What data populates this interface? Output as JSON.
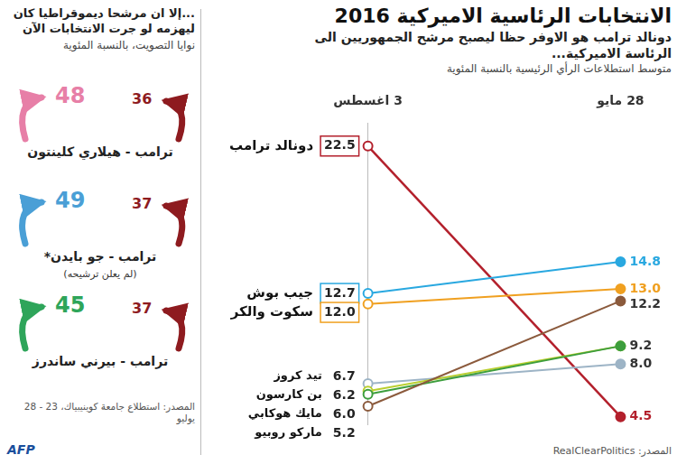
{
  "header": {
    "title": "الانتخابات الرئاسية الاميركية 2016",
    "credit": "AFP"
  },
  "chart_data": {
    "type": "line",
    "title": "دونالد ترامب هو الاوفر حظا ليصبح مرشح الجمهوريين الى الرئاسة الاميركية...",
    "subtitle": "متوسط استطلاعات الرأي الرئيسية بالنسبة المئوية",
    "source": "المصدر: RealClearPolitics",
    "categories": [
      "3 اغسطس",
      "28 مايو"
    ],
    "series": [
      {
        "name": "دونالد ترامب",
        "color": "#b3202c",
        "values": [
          22.5,
          4.5
        ],
        "value_labels": [
          "22.5",
          "4.5"
        ]
      },
      {
        "name": "جيب بوش",
        "color": "#29a8e0",
        "values": [
          12.7,
          14.8
        ],
        "value_labels": [
          "12.7",
          "14.8"
        ]
      },
      {
        "name": "سكوت والكر",
        "color": "#f0a020",
        "values": [
          12.0,
          13.0
        ],
        "value_labels": [
          "12.0",
          "13.0"
        ]
      },
      {
        "name": "تيد كروز",
        "color": "#9db4c6",
        "values": [
          6.7,
          8.0
        ],
        "value_labels": [
          "6.7",
          "8.0"
        ]
      },
      {
        "name": "بن كارسون",
        "color": "#b9cf2e",
        "values": [
          6.2,
          9.2
        ],
        "value_labels": [
          "6.2",
          "9.2"
        ]
      },
      {
        "name": "مايك هوكابي",
        "color": "#3d9e3d",
        "values": [
          6.0,
          9.2
        ],
        "value_labels": [
          "6.0",
          "9.2"
        ]
      },
      {
        "name": "ماركو روبيو",
        "color": "#8b5a3c",
        "values": [
          5.2,
          12.2
        ],
        "value_labels": [
          "5.2",
          "12.2"
        ]
      }
    ],
    "ylim": [
      4,
      24
    ],
    "tick_labels": "x",
    "grid": false,
    "data_labels": true,
    "marker": "circle"
  },
  "matchups": {
    "title": "...إلا ان مرشحا ديموقراطيا كان ليهزمه لو جرت الانتخابات الآن",
    "subtitle": "نوايا التصويت، بالنسبة المئوية",
    "source": "المصدر: استطلاع جامعة كوينيبياك، 23 - 28 يوليو",
    "items": [
      {
        "label": "ترامب - هيلاري كلينتون",
        "trump": 36,
        "democrat": 48,
        "color": "#e77fa7"
      },
      {
        "label": "ترامب - جو بايدن*",
        "note": "(لم يعلن ترشيحه)",
        "trump": 37,
        "democrat": 49,
        "color": "#4a9fd6"
      },
      {
        "label": "ترامب - بيرني ساندرز",
        "trump": 37,
        "democrat": 45,
        "color": "#2ea55a"
      }
    ]
  }
}
